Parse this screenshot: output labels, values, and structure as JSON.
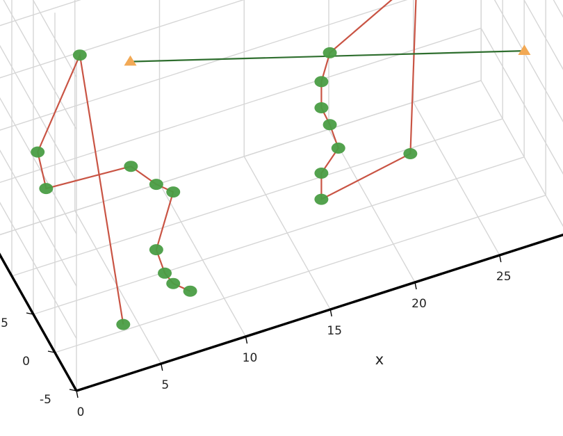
{
  "chart_data": {
    "type": "scatter3d",
    "title": "",
    "xlabel": "x",
    "ylabel": "",
    "zlabel": "",
    "grid": true,
    "legend": "none",
    "x_ticks": [
      "0",
      "5",
      "10",
      "15",
      "20",
      "25"
    ],
    "y_ticks": [
      "-5",
      "0",
      "5"
    ],
    "colors": {
      "path_line": "#c95444",
      "path_marker": "#4a9d45",
      "segment_line": "#2e6e2e",
      "segment_marker": "#f2a955",
      "grid": "#d6d6d6",
      "axis": "#000000"
    },
    "series": [
      {
        "kind": "lines+markers",
        "marker": "circle",
        "points": [
          {
            "x": 2.0,
            "y": -8,
            "z": 0
          },
          {
            "x": 3.0,
            "y": 6,
            "z": 12
          },
          {
            "x": 0.0,
            "y": 4,
            "z": 7
          },
          {
            "x": 0.5,
            "y": 4,
            "z": 4
          },
          {
            "x": 5.0,
            "y": 2,
            "z": 5
          },
          {
            "x": 6.5,
            "y": 2,
            "z": 3
          },
          {
            "x": 7.5,
            "y": 2,
            "z": 2
          },
          {
            "x": 6.5,
            "y": 2,
            "z": -2
          },
          {
            "x": 7.0,
            "y": 2,
            "z": -4
          },
          {
            "x": 7.5,
            "y": 2,
            "z": -5
          },
          {
            "x": 8.5,
            "y": 2,
            "z": -6
          }
        ]
      },
      {
        "kind": "lines+markers",
        "marker": "circle",
        "points": [
          {
            "x": 21.0,
            "y": 0,
            "z": 15
          },
          {
            "x": 21.0,
            "y": 0,
            "z": 18
          },
          {
            "x": 21.0,
            "y": 0,
            "z": 13.5
          },
          {
            "x": 16.5,
            "y": 1,
            "z": 9.5
          },
          {
            "x": 16.0,
            "y": 1,
            "z": 7.5
          },
          {
            "x": 16.0,
            "y": 1,
            "z": 5.5
          },
          {
            "x": 16.5,
            "y": 1,
            "z": 4
          },
          {
            "x": 17.0,
            "y": 1,
            "z": 2
          },
          {
            "x": 16.0,
            "y": 1,
            "z": 0.5
          },
          {
            "x": 16.0,
            "y": 1,
            "z": -1.5
          },
          {
            "x": 21.0,
            "y": 0,
            "z": 0.5
          },
          {
            "x": 21.5,
            "y": 0,
            "z": 18
          }
        ]
      },
      {
        "kind": "lines+markers",
        "marker": "triangle",
        "points": [
          {
            "x": 7.0,
            "y": 10,
            "z": 7.5
          },
          {
            "x": 28.5,
            "y": 3,
            "z": 3.5
          }
        ]
      }
    ]
  }
}
